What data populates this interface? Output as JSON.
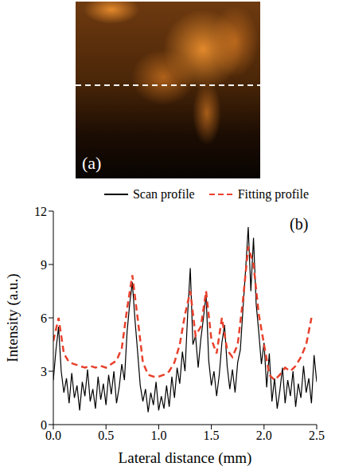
{
  "image_panel": {
    "label": "(a)"
  },
  "chart_data": {
    "type": "line",
    "x_label": "Lateral distance (mm)",
    "y_label": "Intensity (a.u.)",
    "annotations": [
      "(b)"
    ],
    "xlim": [
      0,
      2.5
    ],
    "xticks": [
      {
        "value": 0,
        "label": "0.0"
      },
      0.5,
      {
        "value": 1,
        "label": "1.0"
      },
      1.5,
      {
        "value": 2,
        "label": "2.0"
      },
      2.5
    ],
    "ylim": [
      0,
      12
    ],
    "yticks": [
      0,
      3,
      6,
      9,
      12
    ],
    "legend": "top",
    "series": [
      {
        "name": "Scan profile",
        "color": "#000000",
        "line_style": "solid",
        "x": [
          0,
          0.025,
          0.05,
          0.075,
          0.1,
          0.125,
          0.15,
          0.175,
          0.2,
          0.225,
          0.25,
          0.275,
          0.3,
          0.325,
          0.35,
          0.375,
          0.4,
          0.425,
          0.45,
          0.475,
          0.5,
          0.525,
          0.55,
          0.575,
          0.6,
          0.625,
          0.65,
          0.675,
          0.7,
          0.725,
          0.75,
          0.775,
          0.8,
          0.825,
          0.85,
          0.875,
          0.9,
          0.925,
          0.95,
          0.975,
          1,
          1.025,
          1.05,
          1.075,
          1.1,
          1.125,
          1.15,
          1.175,
          1.2,
          1.225,
          1.25,
          1.275,
          1.3,
          1.325,
          1.35,
          1.375,
          1.4,
          1.425,
          1.45,
          1.475,
          1.5,
          1.525,
          1.55,
          1.575,
          1.6,
          1.625,
          1.65,
          1.675,
          1.7,
          1.725,
          1.75,
          1.775,
          1.8,
          1.825,
          1.85,
          1.875,
          1.9,
          1.925,
          1.95,
          1.975,
          2,
          2.025,
          2.05,
          2.075,
          2.1,
          2.125,
          2.15,
          2.175,
          2.2,
          2.225,
          2.25,
          2.275,
          2.3,
          2.325,
          2.35,
          2.375,
          2.4,
          2.425,
          2.45,
          2.475,
          2.5
        ],
        "values": [
          2.5,
          4.2,
          5.5,
          3.0,
          1.8,
          2.6,
          1.2,
          2.9,
          1.5,
          2.2,
          0.8,
          2.4,
          1.6,
          3.1,
          1.3,
          2.0,
          0.9,
          2.7,
          1.4,
          2.3,
          1.1,
          2.8,
          1.7,
          3.0,
          1.2,
          2.1,
          3.4,
          2.5,
          5.2,
          6.8,
          8.0,
          5.9,
          4.1,
          2.2,
          1.3,
          2.0,
          0.7,
          1.8,
          1.1,
          2.4,
          0.8,
          1.6,
          0.9,
          2.2,
          1.0,
          2.7,
          1.5,
          3.2,
          2.3,
          4.1,
          3.0,
          6.2,
          8.8,
          4.5,
          5.0,
          3.2,
          4.8,
          6.0,
          7.3,
          3.6,
          2.2,
          3.0,
          1.6,
          2.8,
          4.6,
          5.6,
          3.3,
          2.0,
          3.1,
          1.8,
          3.5,
          4.2,
          6.5,
          8.7,
          11.1,
          7.5,
          10.5,
          6.8,
          5.2,
          3.4,
          4.6,
          2.1,
          4.0,
          1.3,
          2.6,
          0.9,
          1.9,
          3.2,
          1.2,
          2.5,
          1.6,
          3.0,
          1.0,
          2.3,
          1.5,
          3.3,
          1.8,
          2.6,
          1.2,
          3.9,
          2.4
        ]
      },
      {
        "name": "Fitting profile",
        "color": "#e8412c",
        "line_style": "dashed",
        "x": [
          0,
          0.05,
          0.1,
          0.15,
          0.2,
          0.25,
          0.3,
          0.35,
          0.4,
          0.45,
          0.5,
          0.55,
          0.6,
          0.65,
          0.7,
          0.75,
          0.8,
          0.85,
          0.9,
          0.95,
          1,
          1.05,
          1.1,
          1.15,
          1.2,
          1.25,
          1.3,
          1.35,
          1.4,
          1.45,
          1.5,
          1.55,
          1.6,
          1.65,
          1.7,
          1.75,
          1.8,
          1.85,
          1.9,
          1.95,
          2,
          2.05,
          2.1,
          2.15,
          2.2,
          2.25,
          2.3,
          2.35,
          2.4,
          2.45
        ],
        "values": [
          4.7,
          6.0,
          4.0,
          3.5,
          3.4,
          3.3,
          3.2,
          3.3,
          3.2,
          3.3,
          3.2,
          3.4,
          3.6,
          4.3,
          6.5,
          8.4,
          6.0,
          3.5,
          2.8,
          2.7,
          2.7,
          2.8,
          3.0,
          3.5,
          4.5,
          6.2,
          7.5,
          5.0,
          5.5,
          7.5,
          4.8,
          4.0,
          6.0,
          4.2,
          3.8,
          4.5,
          7.0,
          10.0,
          9.0,
          6.2,
          4.5,
          2.8,
          2.5,
          2.8,
          3.2,
          3.0,
          3.3,
          3.8,
          4.5,
          6.0
        ]
      }
    ]
  }
}
